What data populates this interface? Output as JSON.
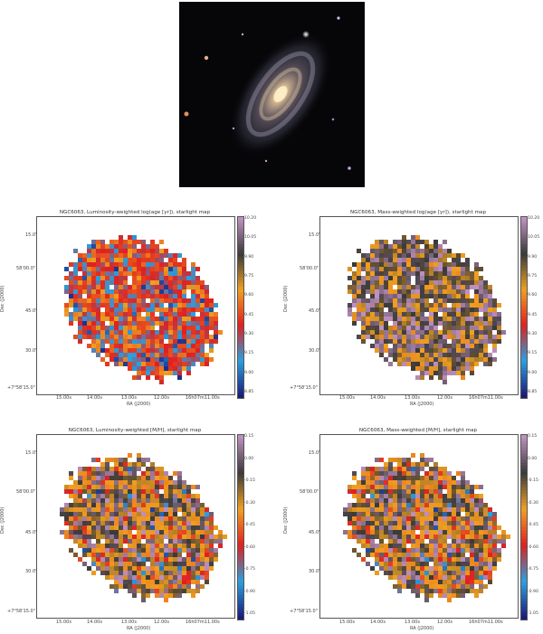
{
  "galaxy_image": {
    "type": "natural-image",
    "subject": "spiral-galaxy"
  },
  "panels": [
    {
      "id": "p1",
      "title": "NGC6063, Luminosity-weighted log(age [yr]), starlight map",
      "xlabel": "RA (J2000)",
      "ylabel": "Dec (J2000)",
      "xticks": [
        "15.00s",
        "14.00s",
        "13.00s",
        "12.00s",
        "16h07m11.00s"
      ],
      "yticks": [
        "15.0\"",
        "58'00.0\"",
        "45.0\"",
        "30.0\"",
        "+7°58'15.0\""
      ],
      "cbar_ticks": [
        "10.20",
        "10.05",
        "9.90",
        "9.75",
        "9.60",
        "9.45",
        "9.30",
        "9.15",
        "9.00",
        "8.85"
      ],
      "palette": "cyclic-age"
    },
    {
      "id": "p2",
      "title": "NGC6063, Mass-weighted log(age [yr]), starlight map",
      "xlabel": "RA (J2000)",
      "ylabel": "Dec (J2000)",
      "xticks": [
        "15.00s",
        "14.00s",
        "13.00s",
        "12.00s",
        "16h07m11.00s"
      ],
      "yticks": [
        "15.0\"",
        "58'00.0\"",
        "45.0\"",
        "30.0\"",
        "+7°58'15.0\""
      ],
      "cbar_ticks": [
        "10.20",
        "10.05",
        "9.90",
        "9.75",
        "9.60",
        "9.45",
        "9.30",
        "9.15",
        "9.00",
        "8.85"
      ],
      "palette": "mass-age"
    },
    {
      "id": "p3",
      "title": "NGC6063, Luminosity-weighted [M/H], starlight map",
      "xlabel": "RA (J2000)",
      "ylabel": "Dec (J2000)",
      "xticks": [
        "15.00s",
        "14.00s",
        "13.00s",
        "12.00s",
        "16h07m11.00s"
      ],
      "yticks": [
        "15.0\"",
        "58'00.0\"",
        "45.0\"",
        "30.0\"",
        "+7°58'15.0\""
      ],
      "cbar_ticks": [
        "0.15",
        "0.00",
        "-0.15",
        "-0.30",
        "-0.45",
        "-0.60",
        "-0.75",
        "-0.90",
        "-1.05"
      ],
      "palette": "metal"
    },
    {
      "id": "p4",
      "title": "NGC6063, Mass-weighted [M/H], starlight map",
      "xlabel": "RA (J2000)",
      "ylabel": "Dec (J2000)",
      "xticks": [
        "15.00s",
        "14.00s",
        "13.00s",
        "12.00s",
        "16h07m11.00s"
      ],
      "yticks": [
        "15.0\"",
        "58'00.0\"",
        "45.0\"",
        "30.0\"",
        "+7°58'15.0\""
      ],
      "cbar_ticks": [
        "0.15",
        "0.00",
        "-0.15",
        "-0.30",
        "-0.45",
        "-0.60",
        "-0.75",
        "-0.90",
        "-1.05"
      ],
      "palette": "metal"
    }
  ],
  "colormap_stops": [
    "#1a1a7a",
    "#2aa0e0",
    "#e02020",
    "#f0a020",
    "#3a3a3a",
    "#c090c0"
  ]
}
